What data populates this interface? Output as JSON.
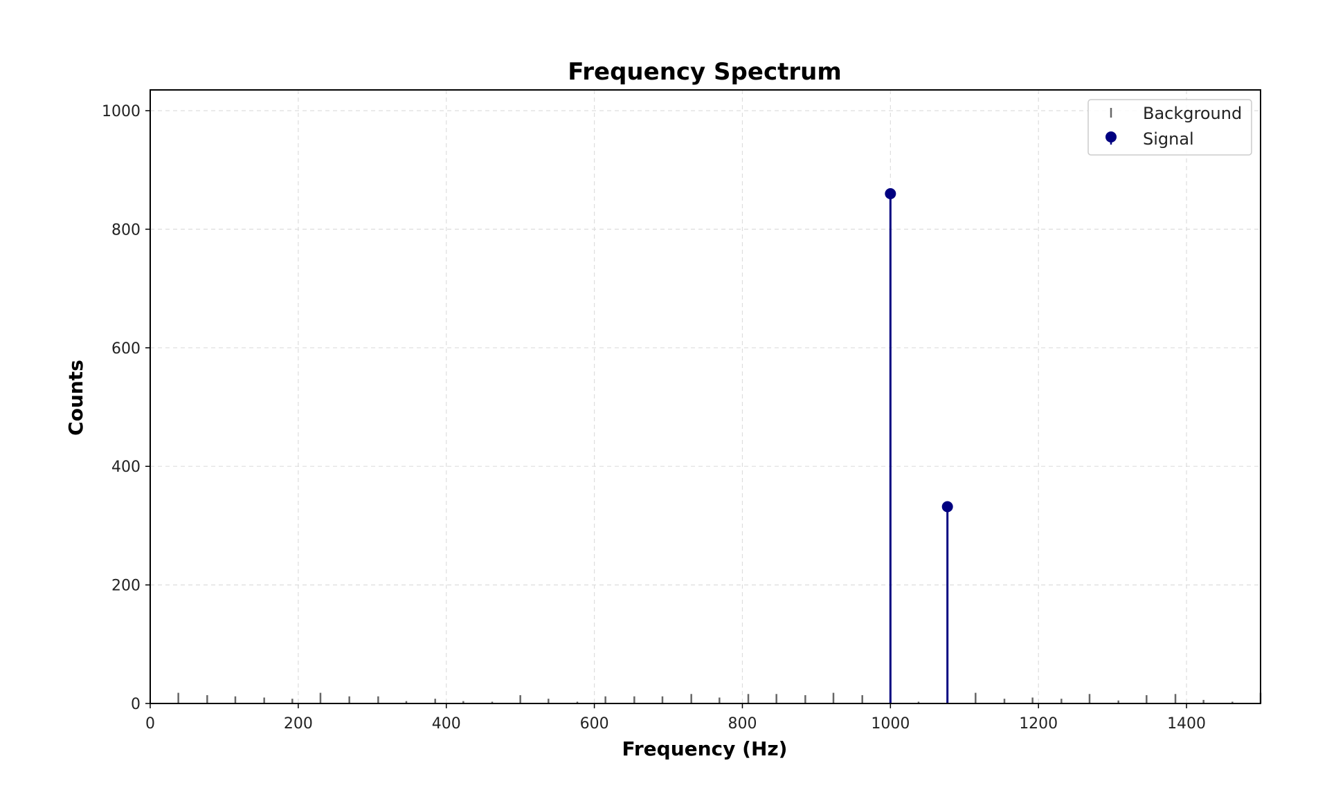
{
  "chart_data": {
    "type": "stem",
    "title": "Frequency Spectrum",
    "xlabel": "Frequency (Hz)",
    "ylabel": "Counts",
    "xlim": [
      0,
      1500
    ],
    "ylim": [
      0,
      1035
    ],
    "xticks": [
      0,
      200,
      400,
      600,
      800,
      1000,
      1200,
      1400
    ],
    "yticks": [
      0,
      200,
      400,
      600,
      800,
      1000
    ],
    "grid": true,
    "grid_style": "dashed",
    "legend": {
      "placement": "top-right",
      "entries": [
        "Background",
        "Signal"
      ]
    },
    "series": [
      {
        "name": "Background",
        "color": "#666666",
        "marker": "none",
        "x": [
          38,
          77,
          115,
          154,
          192,
          230,
          269,
          308,
          346,
          385,
          423,
          462,
          500,
          538,
          577,
          615,
          654,
          692,
          731,
          769,
          808,
          846,
          885,
          923,
          962,
          1000,
          1038,
          1077,
          1115,
          1154,
          1192,
          1231,
          1269,
          1308,
          1346,
          1385,
          1423,
          1462,
          1500
        ],
        "y": [
          18,
          14,
          12,
          10,
          8,
          18,
          12,
          12,
          4,
          8,
          4,
          3,
          14,
          8,
          3,
          12,
          12,
          12,
          16,
          10,
          16,
          16,
          14,
          18,
          14,
          6,
          3,
          6,
          18,
          8,
          10,
          8,
          16,
          5,
          14,
          16,
          6,
          3,
          18
        ]
      },
      {
        "name": "Signal",
        "color": "#000080",
        "marker": "circle",
        "x": [
          1000,
          1077
        ],
        "y": [
          860,
          332
        ]
      }
    ]
  }
}
